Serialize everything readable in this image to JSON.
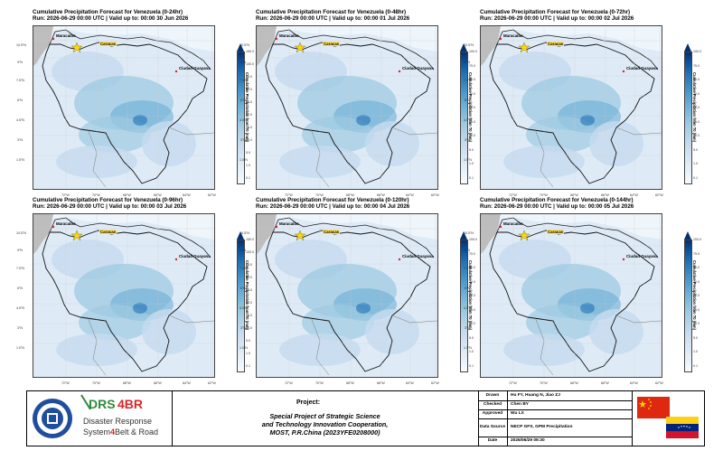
{
  "panels": [
    {
      "title": "Cumulative Precipitation Forecast for Venezuela (0-24hr)",
      "subtitle": "Run: 2026-06-29 00:00 UTC | Valid up to: 00:00 30 Jun 2026"
    },
    {
      "title": "Cumulative Precipitation Forecast for Venezuela (0-48hr)",
      "subtitle": "Run: 2026-06-29 00:00 UTC | Valid up to: 00:00 01 Jul 2026"
    },
    {
      "title": "Cumulative Precipitation Forecast for Venezuela (0-72hr)",
      "subtitle": "Run: 2026-06-29 00:00 UTC | Valid up to: 00:00 02 Jul 2026"
    },
    {
      "title": "Cumulative Precipitation Forecast for Venezuela (0-96hr)",
      "subtitle": "Run: 2026-06-29 00:00 UTC | Valid up to: 00:00 03 Jul 2026"
    },
    {
      "title": "Cumulative Precipitation Forecast for Venezuela (0-120hr)",
      "subtitle": "Run: 2026-06-29 00:00 UTC | Valid up to: 00:00 04 Jul 2026"
    },
    {
      "title": "Cumulative Precipitation Forecast for Venezuela (0-144hr)",
      "subtitle": "Run: 2026-06-29 00:00 UTC | Valid up to: 00:00 05 Jul 2026"
    }
  ],
  "map": {
    "lat_labels": [
      "10.5°N",
      "9°N",
      "7.5°N",
      "6°N",
      "4.5°N",
      "3°N",
      "1.5°N"
    ],
    "lon_labels": [
      "72°W",
      "70°W",
      "68°W",
      "66°W",
      "64°W",
      "62°W"
    ],
    "cities": {
      "west": "Maracaibo",
      "capital": "Caracas",
      "east": "Ciudad Guayana"
    },
    "colorbar_label": "Cumulative Precipitation from T0 (mm)",
    "colorbar_ticks_a": [
      "150.0",
      "100.0",
      "75.0",
      "50.0",
      "30.0",
      "20.0",
      "15.0",
      "10.0",
      "5.0",
      "1.0",
      "0.1"
    ],
    "colorbar_ticks_b": [
      "100.0",
      "75.0",
      "50.0",
      "30.0",
      "20.0",
      "15.0",
      "10.0",
      "5.0",
      "1.0",
      "0.1"
    ],
    "colormap": [
      "#f7fbff",
      "#c6dbef",
      "#6baed6",
      "#2171b5",
      "#08306b"
    ]
  },
  "footer": {
    "logo_text_line1": "Disaster Response",
    "logo_text_line2": "System",
    "logo_text_num": "4",
    "logo_text_line3": "Belt & Road",
    "logo_brand": "DRS4BR",
    "project_label": "Project:",
    "project_line1": "Special Project of Strategic Science",
    "project_line2": "and Technology Innovation Cooperation,",
    "project_line3": "MOST, P.R.China (2023YFE0208000)",
    "drawn_label": "Drawn",
    "drawn_value": "Hu FY, Huang N, Jiao ZJ",
    "checked_label": "Checked",
    "checked_value": "Chen BY",
    "approved_label": "Approved",
    "approved_value": "Wu LX",
    "source_label": "Data Source",
    "source_value": "NECP GFS, GPM Precipitation",
    "date_label": "Date",
    "date_value": "2026/06/29 09:30"
  }
}
